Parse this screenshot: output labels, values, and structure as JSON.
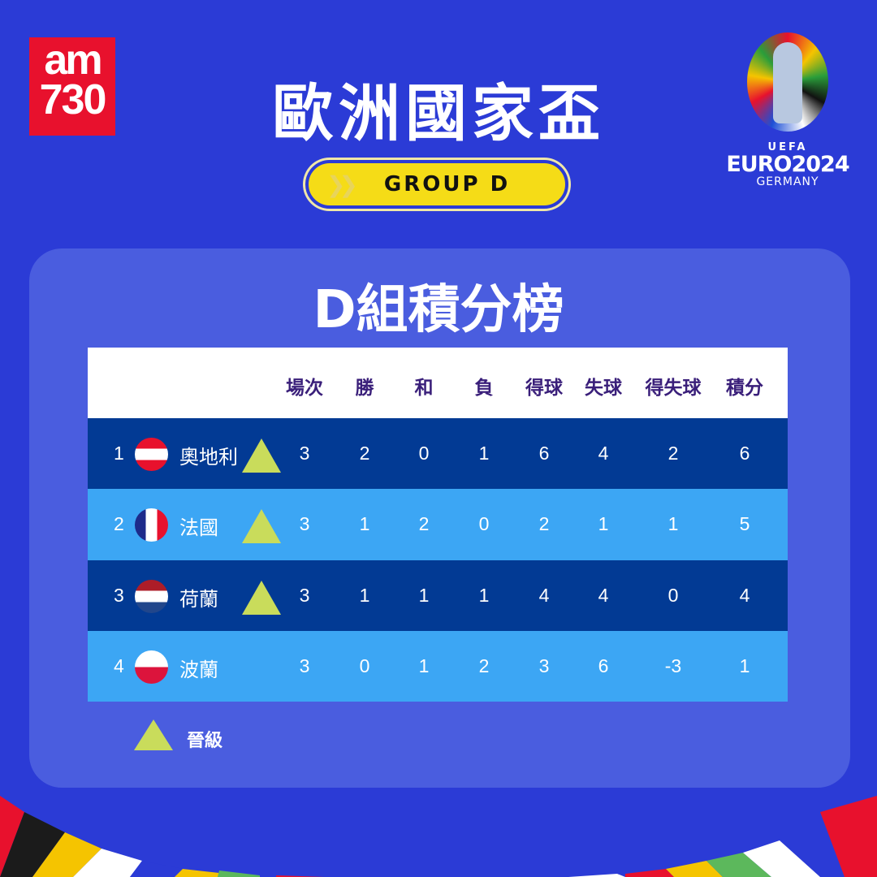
{
  "brand": {
    "logo_text_top": "am",
    "logo_text_bottom": "730"
  },
  "title": "歐洲國家盃",
  "group_badge": {
    "label": "GROUP D",
    "icon": "double-chevron-right"
  },
  "euro_logo": {
    "uefa": "UEFA",
    "name": "EURO2024",
    "country": "GERMANY"
  },
  "subtitle": "D組積分榜",
  "table": {
    "columns": [
      "場次",
      "勝",
      "和",
      "負",
      "得球",
      "失球",
      "得失球",
      "積分"
    ],
    "rows": [
      {
        "pos": "1",
        "team": "奧地利",
        "flag": "austria",
        "qualified": true,
        "values": [
          "3",
          "2",
          "0",
          "1",
          "6",
          "4",
          "2",
          "6"
        ]
      },
      {
        "pos": "2",
        "team": "法國",
        "flag": "france",
        "qualified": true,
        "values": [
          "3",
          "1",
          "2",
          "0",
          "2",
          "1",
          "1",
          "5"
        ]
      },
      {
        "pos": "3",
        "team": "荷蘭",
        "flag": "netherlands",
        "qualified": true,
        "values": [
          "3",
          "1",
          "1",
          "1",
          "4",
          "4",
          "0",
          "4"
        ]
      },
      {
        "pos": "4",
        "team": "波蘭",
        "flag": "poland",
        "qualified": false,
        "values": [
          "3",
          "0",
          "1",
          "2",
          "3",
          "6",
          "-3",
          "1"
        ]
      }
    ]
  },
  "legend": {
    "qualified_label": "晉級",
    "icon": "green-triangle"
  },
  "colors": {
    "background": "#2b3bd6",
    "panel": "#4a5ddf",
    "row_dark": "#023a94",
    "row_light": "#3ca6f4",
    "header_text": "#3a1f7a",
    "badge": "#f5dc17",
    "qualified": "#c9dc5b"
  }
}
